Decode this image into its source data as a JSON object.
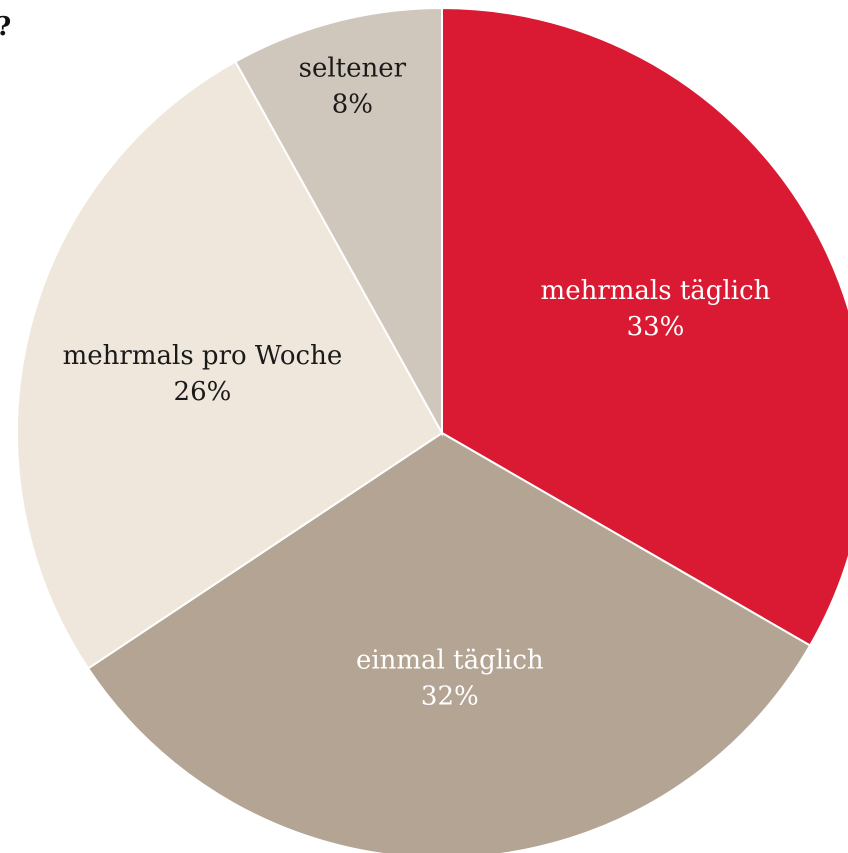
{
  "chart_data": {
    "type": "pie",
    "title": "?",
    "categories": [
      "mehrmals täglich",
      "einmal täglich",
      "mehrmals pro Woche",
      "seltener"
    ],
    "values": [
      33,
      32,
      26,
      8
    ],
    "value_labels": [
      "33%",
      "32%",
      "26%",
      "8%"
    ],
    "colors": [
      "#d91a32",
      "#b3a494",
      "#efe7dc",
      "#cfc6bc"
    ]
  }
}
